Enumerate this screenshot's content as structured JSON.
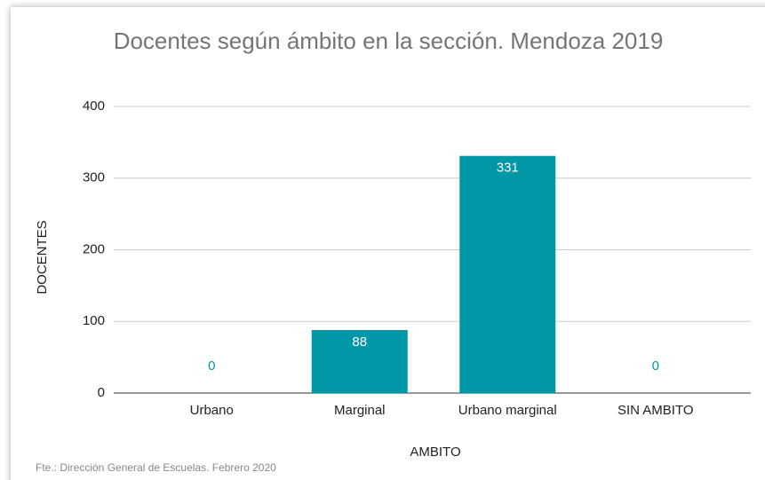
{
  "chart_data": {
    "type": "bar",
    "title": "Docentes según ámbito en la sección. Mendoza 2019",
    "categories": [
      "Urbano",
      "Marginal",
      "Urbano marginal",
      "SIN AMBITO"
    ],
    "values": [
      0,
      88,
      331,
      0
    ],
    "color": "#0097a7",
    "ylim": [
      0,
      400
    ],
    "yticks": [
      0,
      100,
      200,
      300,
      400
    ],
    "grid": true,
    "x_label": "AMBITO",
    "y_label": "DOCENTES",
    "source": "Fte.: Dirección General de Escuelas. Febrero 2020"
  }
}
